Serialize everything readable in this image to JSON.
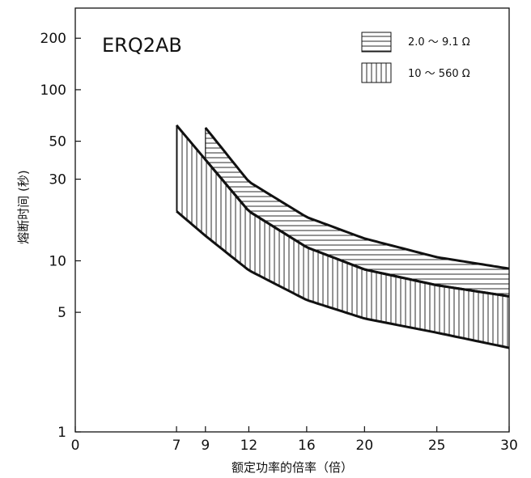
{
  "chart_data": {
    "type": "area",
    "title": "ERQ2AB",
    "xlabel": "额定功率的倍率（倍）",
    "ylabel": "熔断时间 (秒)",
    "x_ticks": [
      0,
      7,
      9,
      12,
      16,
      20,
      25,
      30
    ],
    "y_ticks": [
      1,
      5,
      10,
      30,
      50,
      100,
      200
    ],
    "y_scale": "log",
    "xlim": [
      0,
      30
    ],
    "ylim": [
      1,
      300
    ],
    "grid": false,
    "legend_position": "top-right",
    "series": [
      {
        "name": "2.0 ～ 9.1 Ω",
        "pattern": "horizontal-hatch",
        "upper": {
          "x": [
            9,
            12,
            16,
            20,
            25,
            30
          ],
          "y": [
            60,
            29,
            18,
            13.5,
            10.5,
            9
          ]
        },
        "lower": {
          "x": [
            9,
            12,
            16,
            20,
            25,
            30
          ],
          "y": [
            39,
            19.5,
            12,
            8.9,
            7.2,
            6.2
          ]
        }
      },
      {
        "name": "10 ～ 560 Ω",
        "pattern": "vertical-hatch",
        "upper": {
          "x": [
            7,
            9,
            12,
            16,
            20,
            25,
            30
          ],
          "y": [
            62,
            39,
            19.5,
            12,
            8.9,
            7.2,
            6.2
          ]
        },
        "lower": {
          "x": [
            7,
            9,
            12,
            16,
            20,
            25,
            30
          ],
          "y": [
            19.5,
            14,
            8.8,
            5.9,
            4.6,
            3.8,
            3.1
          ]
        }
      }
    ]
  }
}
